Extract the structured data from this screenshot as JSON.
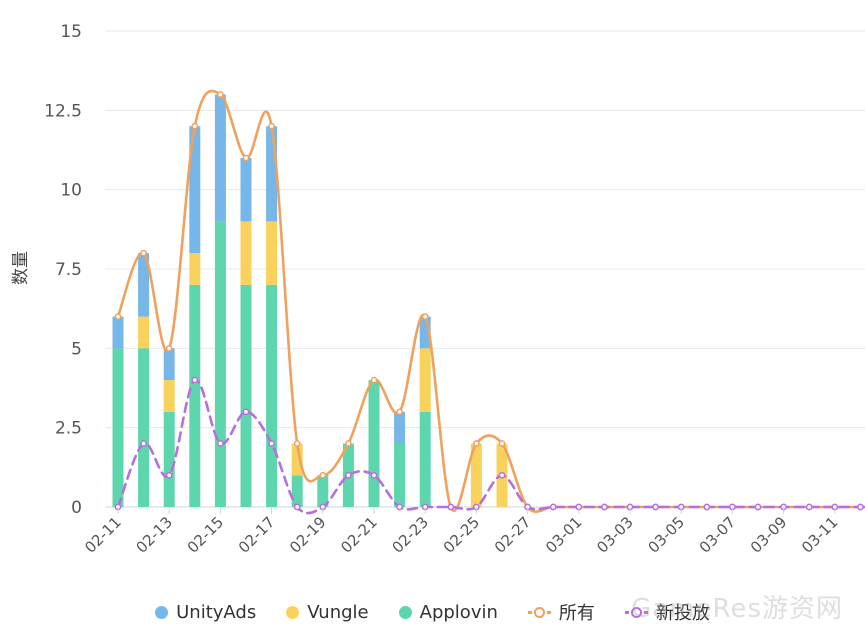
{
  "chart_data": {
    "type": "bar",
    "stacked": true,
    "title": "",
    "ylabel": "数量",
    "xlabel": "",
    "ylim": [
      0,
      15
    ],
    "yticks": [
      "0",
      "2.5",
      "5",
      "7.5",
      "10",
      "12.5",
      "15"
    ],
    "categories": [
      "02-11",
      "02-12",
      "02-13",
      "02-14",
      "02-15",
      "02-16",
      "02-17",
      "02-18",
      "02-19",
      "02-20",
      "02-21",
      "02-22",
      "02-23",
      "02-24",
      "02-25",
      "02-26",
      "02-27",
      "02-28",
      "03-01",
      "03-02",
      "03-03",
      "03-04",
      "03-05",
      "03-06",
      "03-07",
      "03-08",
      "03-09",
      "03-10",
      "03-11",
      "03-12"
    ],
    "xtick_labels": [
      "02-11",
      "02-13",
      "02-15",
      "02-17",
      "02-19",
      "02-21",
      "02-23",
      "02-25",
      "02-27",
      "03-01",
      "03-03",
      "03-05",
      "03-07",
      "03-09",
      "03-11"
    ],
    "series": [
      {
        "name": "Applovin",
        "kind": "bar",
        "color": "#5dd6ae",
        "values": [
          5,
          5,
          3,
          7,
          9,
          7,
          7,
          1,
          1,
          2,
          4,
          2,
          3,
          0,
          0,
          0,
          0,
          0,
          0,
          0,
          0,
          0,
          0,
          0,
          0,
          0,
          0,
          0,
          0,
          0
        ]
      },
      {
        "name": "Vungle",
        "kind": "bar",
        "color": "#f9d25e",
        "values": [
          0,
          1,
          1,
          1,
          0,
          2,
          2,
          1,
          0,
          0,
          0,
          0,
          2,
          0,
          2,
          2,
          0,
          0,
          0,
          0,
          0,
          0,
          0,
          0,
          0,
          0,
          0,
          0,
          0,
          0
        ]
      },
      {
        "name": "UnityAds",
        "kind": "bar",
        "color": "#77b6e8",
        "values": [
          1,
          2,
          1,
          4,
          4,
          2,
          3,
          0,
          0,
          0,
          0,
          1,
          1,
          0,
          0,
          0,
          0,
          0,
          0,
          0,
          0,
          0,
          0,
          0,
          0,
          0,
          0,
          0,
          0,
          0
        ]
      },
      {
        "name": "所有",
        "kind": "line",
        "color": "#f0a15e",
        "values": [
          6,
          8,
          5,
          12,
          13,
          11,
          12,
          2,
          1,
          2,
          4,
          3,
          6,
          0,
          2,
          2,
          0,
          0,
          0,
          0,
          0,
          0,
          0,
          0,
          0,
          0,
          0,
          0,
          0,
          0
        ]
      },
      {
        "name": "新投放",
        "kind": "line",
        "dashed": true,
        "color": "#b76fe0",
        "values": [
          0,
          2,
          1,
          4,
          2,
          3,
          2,
          0,
          0,
          1,
          1,
          0,
          0,
          0,
          0,
          1,
          0,
          0,
          0,
          0,
          0,
          0,
          0,
          0,
          0,
          0,
          0,
          0,
          0,
          0
        ]
      }
    ],
    "legend_order": [
      "UnityAds",
      "Vungle",
      "Applovin",
      "所有",
      "新投放"
    ],
    "legend_position": "bottom",
    "grid": true
  },
  "watermark": "GameRes游资网"
}
